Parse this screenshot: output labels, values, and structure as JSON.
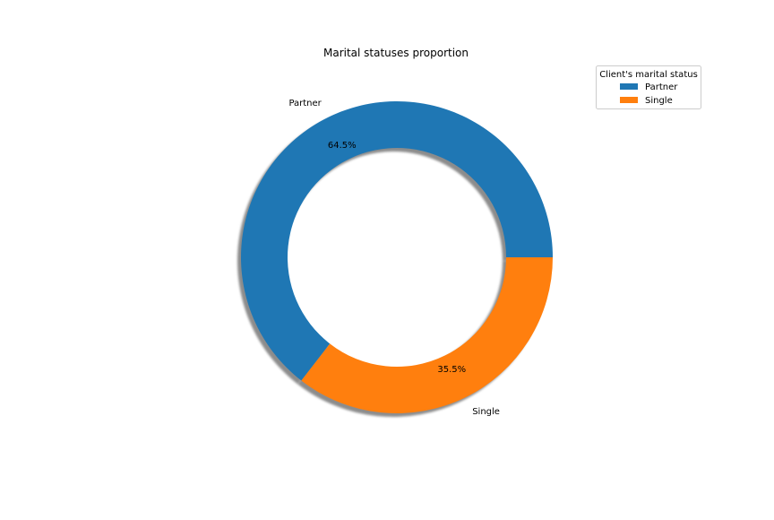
{
  "chart_data": {
    "type": "pie",
    "variant": "donut",
    "title": "Marital statuses proportion",
    "categories": [
      "Partner",
      "Single"
    ],
    "values": [
      64.5,
      35.5
    ],
    "value_labels": [
      "64.5%",
      "35.5%"
    ],
    "colors": [
      "#1f77b4",
      "#ff7f0e"
    ],
    "shadow": true,
    "legend": {
      "title": "Client's marital status",
      "placement": "top-right",
      "entries": [
        "Partner",
        "Single"
      ]
    }
  }
}
